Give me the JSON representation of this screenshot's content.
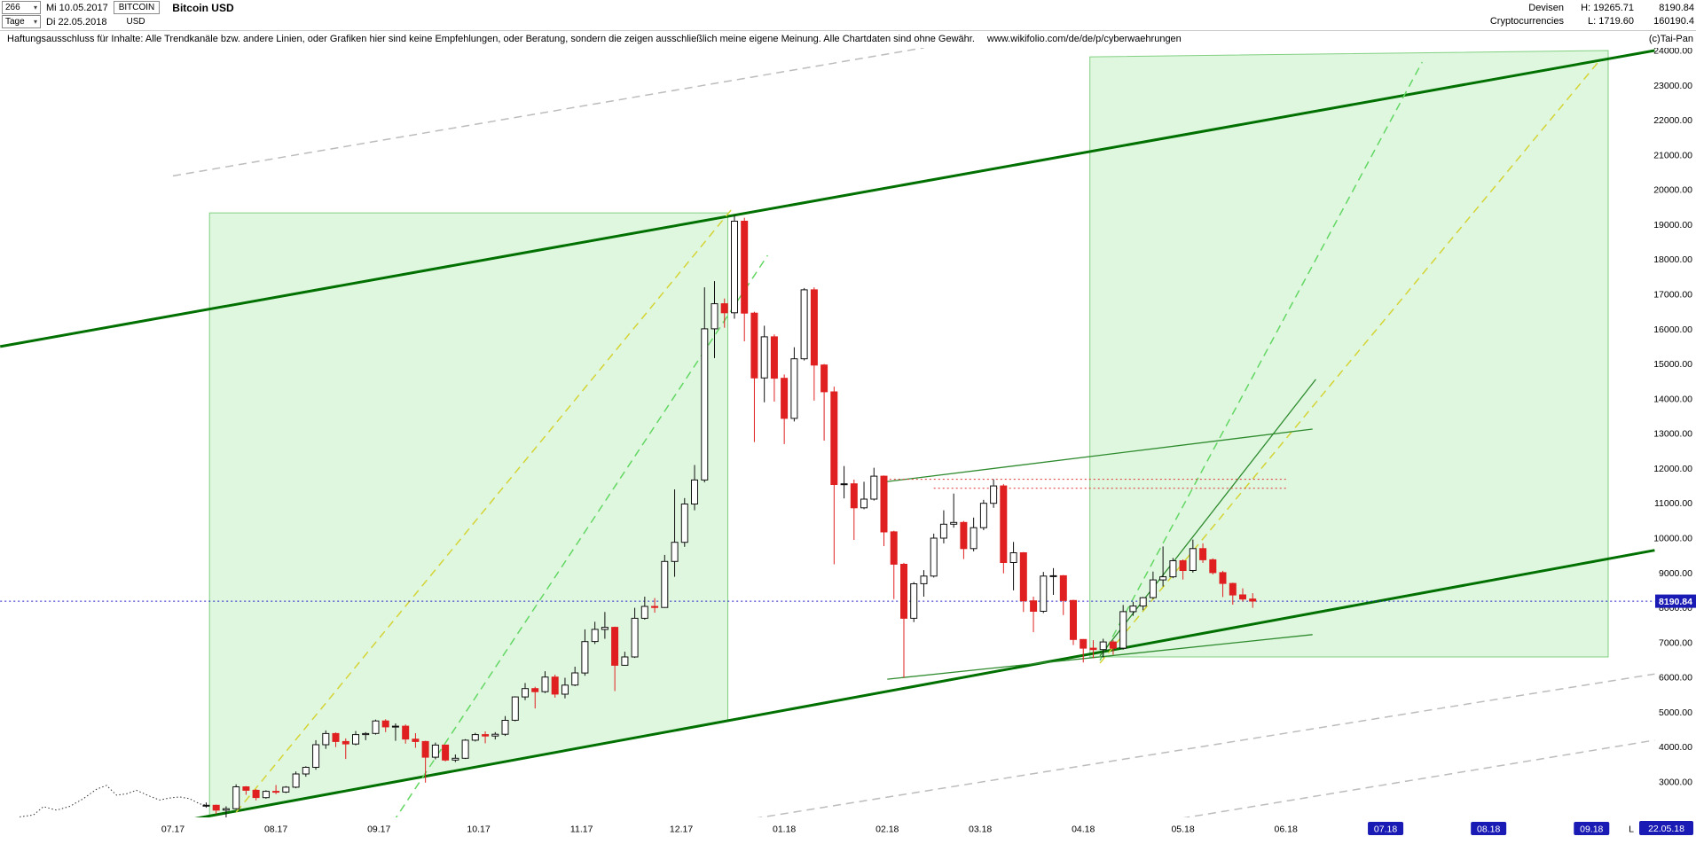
{
  "header": {
    "bars_dropdown": {
      "value": "266"
    },
    "period_dropdown": {
      "value": "Tage"
    },
    "first_date": "Mi 10.05.2017",
    "last_date": "Di 22.05.2018",
    "symbol": "BITCOIN",
    "currency": "USD",
    "title": "Bitcoin USD",
    "right": {
      "market": "Devisen",
      "category": "Cryptocurrencies",
      "high": "H: 19265.71",
      "low": "L: 1719.60",
      "value_top": "8190.84",
      "value_bottom": "160190.4"
    }
  },
  "disclaimer": {
    "text": "Haftungsausschluss für Inhalte: Alle Trendkanäle bzw. andere Linien, oder Grafiken hier sind keine Empfehlungen, oder Beratung, sondern die zeigen ausschließlich meine eigene Meinung. Alle Chartdaten sind ohne Gewähr.",
    "url": "www.wikifolio.com/de/de/p/cyberwaehrungen",
    "copyright": "(c)Tai-Pan"
  },
  "chart_data": {
    "type": "candlestick",
    "title": "Bitcoin USD",
    "y_axis": {
      "min": 3000,
      "max": 24000,
      "step": 1000,
      "tick_labels": [
        "24000.00",
        "23000.00",
        "22000.00",
        "21000.00",
        "20000.00",
        "19000.00",
        "18000.00",
        "17000.00",
        "16000.00",
        "15000.00",
        "14000.00",
        "13000.00",
        "12000.00",
        "11000.00",
        "10000.00",
        "9000.00",
        "8000.00",
        "7000.00",
        "6000.00",
        "5000.00",
        "4000.00",
        "3000.00"
      ]
    },
    "x_axis": {
      "tick_labels": [
        "07.17",
        "08.17",
        "09.17",
        "10.17",
        "11.17",
        "12.17",
        "01.18",
        "02.18",
        "03.18",
        "04.18",
        "05.18",
        "06.18",
        "07.18",
        "08.18",
        "09.18"
      ],
      "highlighted_ticks": [
        "07.18",
        "08.18",
        "09.18"
      ],
      "last_label": "L",
      "last_date_marker": "22.05.18"
    },
    "current_price_marker": {
      "label": "8190.84",
      "price": 8190.84
    },
    "history_line": {
      "style": "dotted-black",
      "points": [
        [
          "10.05.17",
          1770
        ],
        [
          "13.05.17",
          1830
        ],
        [
          "16.05.17",
          2000
        ],
        [
          "20.05.17",
          2050
        ],
        [
          "23.05.17",
          2290
        ],
        [
          "27.05.17",
          2190
        ],
        [
          "31.05.17",
          2300
        ],
        [
          "04.06.17",
          2520
        ],
        [
          "08.06.17",
          2790
        ],
        [
          "11.06.17",
          2900
        ],
        [
          "14.06.17",
          2620
        ],
        [
          "17.06.17",
          2660
        ],
        [
          "20.06.17",
          2760
        ],
        [
          "24.06.17",
          2590
        ],
        [
          "27.06.17",
          2480
        ],
        [
          "30.06.17",
          2540
        ],
        [
          "03.07.17",
          2570
        ],
        [
          "06.07.17",
          2520
        ],
        [
          "09.07.17",
          2370
        ],
        [
          "11.07.17",
          2330
        ]
      ]
    },
    "candles": [
      [
        "11.07.17",
        2320,
        2410,
        2260,
        2330
      ],
      [
        "14.07.17",
        2330,
        2350,
        2080,
        2190
      ],
      [
        "17.07.17",
        2190,
        2300,
        1720,
        2230
      ],
      [
        "20.07.17",
        2230,
        2930,
        2210,
        2860
      ],
      [
        "23.07.17",
        2860,
        2880,
        2630,
        2760
      ],
      [
        "26.07.17",
        2760,
        2790,
        2470,
        2550
      ],
      [
        "29.07.17",
        2550,
        2760,
        2520,
        2730
      ],
      [
        "01.08.17",
        2730,
        2910,
        2650,
        2710
      ],
      [
        "04.08.17",
        2710,
        2880,
        2680,
        2850
      ],
      [
        "07.08.17",
        2850,
        3300,
        2820,
        3230
      ],
      [
        "10.08.17",
        3230,
        3450,
        3150,
        3420
      ],
      [
        "13.08.17",
        3420,
        4200,
        3350,
        4070
      ],
      [
        "16.08.17",
        4070,
        4480,
        3950,
        4390
      ],
      [
        "19.08.17",
        4390,
        4420,
        4000,
        4160
      ],
      [
        "22.08.17",
        4160,
        4250,
        3660,
        4090
      ],
      [
        "25.08.17",
        4090,
        4460,
        4050,
        4360
      ],
      [
        "28.08.17",
        4360,
        4430,
        4200,
        4390
      ],
      [
        "31.08.17",
        4390,
        4790,
        4360,
        4750
      ],
      [
        "03.09.17",
        4750,
        4800,
        4430,
        4580
      ],
      [
        "06.09.17",
        4580,
        4680,
        4180,
        4600
      ],
      [
        "09.09.17",
        4600,
        4650,
        4100,
        4230
      ],
      [
        "12.09.17",
        4230,
        4400,
        3980,
        4160
      ],
      [
        "15.09.17",
        4160,
        4180,
        2980,
        3710
      ],
      [
        "18.09.17",
        3710,
        4130,
        3650,
        4060
      ],
      [
        "21.09.17",
        4060,
        4070,
        3590,
        3630
      ],
      [
        "24.09.17",
        3630,
        3790,
        3570,
        3680
      ],
      [
        "27.09.17",
        3680,
        4230,
        3660,
        4200
      ],
      [
        "30.09.17",
        4200,
        4410,
        4160,
        4360
      ],
      [
        "03.10.17",
        4360,
        4450,
        4110,
        4320
      ],
      [
        "06.10.17",
        4320,
        4430,
        4220,
        4370
      ],
      [
        "09.10.17",
        4370,
        4890,
        4320,
        4770
      ],
      [
        "12.10.17",
        4770,
        5460,
        4740,
        5440
      ],
      [
        "15.10.17",
        5440,
        5840,
        5350,
        5680
      ],
      [
        "18.10.17",
        5680,
        5730,
        5110,
        5590
      ],
      [
        "21.10.17",
        5590,
        6180,
        5550,
        6010
      ],
      [
        "24.10.17",
        6010,
        6080,
        5420,
        5520
      ],
      [
        "27.10.17",
        5520,
        5990,
        5400,
        5780
      ],
      [
        "30.10.17",
        5780,
        6310,
        5750,
        6130
      ],
      [
        "02.11.17",
        6130,
        7380,
        6050,
        7030
      ],
      [
        "05.11.17",
        7030,
        7600,
        6960,
        7380
      ],
      [
        "08.11.17",
        7380,
        7880,
        7110,
        7440
      ],
      [
        "11.11.17",
        7440,
        7460,
        5610,
        6350
      ],
      [
        "14.11.17",
        6350,
        6740,
        6340,
        6590
      ],
      [
        "17.11.17",
        6590,
        8000,
        6560,
        7700
      ],
      [
        "20.11.17",
        7700,
        8320,
        7660,
        8040
      ],
      [
        "23.11.17",
        8040,
        8280,
        7860,
        8010
      ],
      [
        "26.11.17",
        8010,
        9520,
        8000,
        9330
      ],
      [
        "29.11.17",
        9330,
        11400,
        8890,
        9880
      ],
      [
        "02.12.17",
        9880,
        11150,
        9750,
        10980
      ],
      [
        "05.12.17",
        10980,
        12100,
        10800,
        11670
      ],
      [
        "08.12.17",
        11670,
        17200,
        11600,
        16010
      ],
      [
        "11.12.17",
        16010,
        17380,
        15170,
        16730
      ],
      [
        "14.12.17",
        16730,
        16880,
        16040,
        16470
      ],
      [
        "17.12.17",
        16470,
        19265.71,
        16300,
        19100
      ],
      [
        "20.12.17",
        19100,
        19200,
        15650,
        16460
      ],
      [
        "23.12.17",
        16460,
        16500,
        12760,
        14600
      ],
      [
        "26.12.17",
        14600,
        16100,
        13900,
        15780
      ],
      [
        "29.12.17",
        15780,
        15850,
        13920,
        14590
      ],
      [
        "01.01.18",
        14590,
        14700,
        12700,
        13440
      ],
      [
        "04.01.18",
        13440,
        15480,
        13350,
        15150
      ],
      [
        "07.01.18",
        15150,
        17180,
        15100,
        17130
      ],
      [
        "10.01.18",
        17130,
        17200,
        13950,
        14970
      ],
      [
        "13.01.18",
        14970,
        15000,
        12800,
        14200
      ],
      [
        "16.01.18",
        14200,
        14350,
        9250,
        11540
      ],
      [
        "19.01.18",
        11540,
        12070,
        11140,
        11560
      ],
      [
        "22.01.18",
        11560,
        11680,
        9950,
        10870
      ],
      [
        "25.01.18",
        10870,
        11620,
        10830,
        11120
      ],
      [
        "28.01.18",
        11120,
        12020,
        11080,
        11780
      ],
      [
        "31.01.18",
        11780,
        11800,
        9770,
        10180
      ],
      [
        "03.02.18",
        10180,
        10210,
        8250,
        9250
      ],
      [
        "06.02.18",
        9250,
        9290,
        5990,
        7700
      ],
      [
        "09.02.18",
        7700,
        8740,
        7590,
        8690
      ],
      [
        "12.02.18",
        8690,
        9080,
        8320,
        8910
      ],
      [
        "15.02.18",
        8910,
        10130,
        8870,
        10000
      ],
      [
        "18.02.18",
        10000,
        10800,
        9850,
        10400
      ],
      [
        "21.02.18",
        10400,
        11280,
        10300,
        10450
      ],
      [
        "24.02.18",
        10450,
        10490,
        9400,
        9700
      ],
      [
        "27.02.18",
        9700,
        10590,
        9620,
        10300
      ],
      [
        "02.03.18",
        10300,
        11100,
        10230,
        11000
      ],
      [
        "05.03.18",
        11000,
        11690,
        10870,
        11500
      ],
      [
        "08.03.18",
        11500,
        11550,
        8990,
        9300
      ],
      [
        "11.03.18",
        9300,
        9890,
        8500,
        9580
      ],
      [
        "14.03.18",
        9580,
        9600,
        7880,
        8200
      ],
      [
        "17.03.18",
        8200,
        8320,
        7300,
        7900
      ],
      [
        "20.03.18",
        7900,
        9030,
        7850,
        8910
      ],
      [
        "23.03.18",
        8910,
        9140,
        8370,
        8920
      ],
      [
        "26.03.18",
        8920,
        8940,
        7790,
        8210
      ],
      [
        "29.03.18",
        8210,
        8230,
        6930,
        7090
      ],
      [
        "01.04.18",
        7090,
        7100,
        6430,
        6840
      ],
      [
        "04.04.18",
        6840,
        7070,
        6550,
        6800
      ],
      [
        "07.04.18",
        6800,
        7110,
        6570,
        7020
      ],
      [
        "10.04.18",
        7020,
        7070,
        6650,
        6840
      ],
      [
        "13.04.18",
        6840,
        8080,
        6800,
        7890
      ],
      [
        "16.04.18",
        7890,
        8170,
        7770,
        8050
      ],
      [
        "19.04.18",
        8050,
        8310,
        7930,
        8290
      ],
      [
        "22.04.18",
        8290,
        9040,
        8250,
        8800
      ],
      [
        "25.04.18",
        8800,
        9760,
        8610,
        8890
      ],
      [
        "28.04.18",
        8890,
        9430,
        8850,
        9350
      ],
      [
        "01.05.18",
        9350,
        9390,
        8810,
        9070
      ],
      [
        "04.05.18",
        9070,
        9960,
        9010,
        9700
      ],
      [
        "07.05.18",
        9700,
        9850,
        9290,
        9380
      ],
      [
        "10.05.18",
        9380,
        9420,
        8960,
        9010
      ],
      [
        "13.05.18",
        9010,
        9060,
        8310,
        8700
      ],
      [
        "16.05.18",
        8700,
        8720,
        8090,
        8370
      ],
      [
        "19.05.18",
        8370,
        8560,
        8180,
        8250
      ],
      [
        "22.05.18",
        8250,
        8420,
        8000,
        8190.84
      ]
    ],
    "trend_lines": [
      {
        "name": "upper-channel-line",
        "style": "solid",
        "color": "#007000",
        "width": 3,
        "from": [
          "10.05.17",
          15500
        ],
        "to": [
          "20.09.18",
          24000
        ]
      },
      {
        "name": "lower-channel-line",
        "style": "solid",
        "color": "#007000",
        "width": 3,
        "from": [
          "05.07.17",
          1900
        ],
        "to": [
          "20.09.18",
          9650
        ]
      },
      {
        "name": "gray-parallel-upper",
        "style": "dashed",
        "color": "#bcbcbc",
        "width": 1.5,
        "from": [
          "01.07.17",
          20400
        ],
        "to": [
          "12.02.18",
          24080
        ]
      },
      {
        "name": "gray-parallel-lower",
        "style": "dashed",
        "color": "#bcbcbc",
        "width": 1.5,
        "from": [
          "15.12.17",
          1830
        ],
        "to": [
          "20.09.18",
          6100
        ]
      },
      {
        "name": "gray-parallel-bottom",
        "style": "dashed",
        "color": "#bcbcbc",
        "width": 1.5,
        "from": [
          "03.04.18",
          1520
        ],
        "to": [
          "20.09.18",
          4200
        ]
      },
      {
        "name": "rally-channel-yellow",
        "style": "dashed",
        "color": "#d4d435",
        "width": 1.5,
        "from": [
          "20.07.17",
          2130
        ],
        "to": [
          "16.12.17",
          19420
        ]
      },
      {
        "name": "rally-channel-green",
        "style": "dashed",
        "color": "#63d763",
        "width": 1.5,
        "from": [
          "03.09.17",
          1520
        ],
        "to": [
          "27.12.17",
          18120
        ]
      },
      {
        "name": "projection-yellow",
        "style": "dashed",
        "color": "#d4d435",
        "width": 1.5,
        "from": [
          "06.04.18",
          6410
        ],
        "to": [
          "03.09.18",
          23670
        ]
      },
      {
        "name": "projection-green",
        "style": "dashed",
        "color": "#63d763",
        "width": 1.5,
        "from": [
          "06.04.18",
          6490
        ],
        "to": [
          "12.07.18",
          23670
        ]
      },
      {
        "name": "resistance-line",
        "style": "solid",
        "color": "#2e8b2e",
        "width": 1.3,
        "from": [
          "30.01.18",
          11600
        ],
        "to": [
          "09.06.18",
          13130
        ]
      },
      {
        "name": "support-line",
        "style": "solid",
        "color": "#2e8b2e",
        "width": 1.3,
        "from": [
          "01.02.18",
          5950
        ],
        "to": [
          "09.06.18",
          7230
        ]
      },
      {
        "name": "may-trend-line",
        "style": "solid",
        "color": "#2e8b2e",
        "width": 1.3,
        "from": [
          "06.04.18",
          6620
        ],
        "to": [
          "10.06.18",
          14560
        ]
      },
      {
        "name": "red-resistance-upper",
        "style": "dotted",
        "color": "#e03030",
        "width": 1,
        "from": [
          "30.01.18",
          11690
        ],
        "to": [
          "01.06.18",
          11690
        ]
      },
      {
        "name": "red-resistance-lower",
        "style": "dotted",
        "color": "#e03030",
        "width": 1,
        "from": [
          "15.02.18",
          11430
        ],
        "to": [
          "01.06.18",
          11430
        ]
      },
      {
        "name": "current-price-line",
        "style": "dotted",
        "color": "#2020c8",
        "width": 1,
        "from": [
          "10.05.17",
          8190.84
        ],
        "to": [
          "20.09.18",
          8190.84
        ]
      }
    ],
    "zones": [
      {
        "name": "rally-2017-zone",
        "corners": [
          [
            "12.07.17",
            19340
          ],
          [
            "15.12.17",
            19340
          ],
          [
            "15.12.17",
            4760
          ],
          [
            "12.07.17",
            2020
          ]
        ]
      },
      {
        "name": "projection-2018-zone",
        "corners": [
          [
            "03.04.18",
            23820
          ],
          [
            "06.09.18",
            24000
          ],
          [
            "06.09.18",
            6590
          ],
          [
            "03.04.18",
            6590
          ]
        ]
      }
    ],
    "colors": {
      "up": "#ffffff",
      "up_border": "#101010",
      "down": "#e02020",
      "zone_fill": "rgba(150,230,150,0.30)",
      "zone_border": "rgba(110,200,110,0.85)",
      "current_price_line": "#2020c8",
      "marker_bg": "#1a1ab4"
    }
  }
}
